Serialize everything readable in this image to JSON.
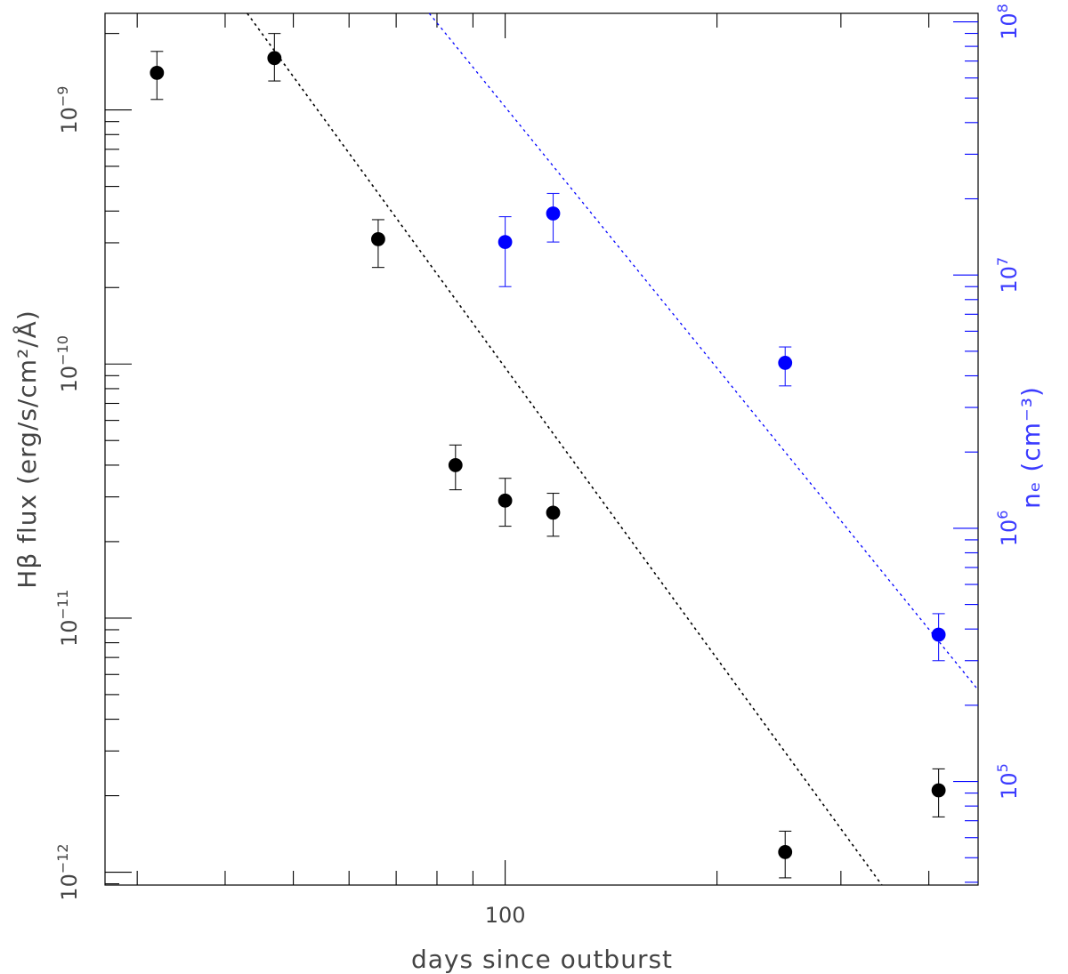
{
  "chart_data": {
    "type": "scatter",
    "xlabel": "days since outburst",
    "ylabel": "Hβ flux (erg/s/cm²/Å)",
    "y2label": "nₑ (cm⁻³)",
    "xscale": "log",
    "yscale": "log",
    "y2scale": "log",
    "xlim": [
      27,
      470
    ],
    "ylim": [
      8.9e-13,
      2.4e-09
    ],
    "y2lim": [
      39000.0,
      108000000.0
    ],
    "x_ticks_labeled": [
      100
    ],
    "x_tick_labels": [
      "100"
    ],
    "y_ticks_labeled": [
      1e-12,
      1e-11,
      1e-10,
      1e-09
    ],
    "y_tick_labels": [
      "10−12",
      "10−11",
      "10−10",
      "10−9"
    ],
    "y2_ticks_labeled": [
      100000.0,
      1000000.0,
      10000000.0,
      100000000.0
    ],
    "y2_tick_labels": [
      "105",
      "106",
      "107",
      "108"
    ],
    "series": [
      {
        "name": "Hβ flux",
        "axis": "left",
        "color": "#000000",
        "x": [
          32,
          47,
          66,
          85,
          100,
          117,
          250,
          413
        ],
        "y": [
          1.4e-09,
          1.6e-09,
          3.1e-10,
          4e-11,
          2.9e-11,
          2.6e-11,
          1.2e-12,
          2.1e-12
        ],
        "y_err_low": [
          1.1e-09,
          1.3e-09,
          2.4e-10,
          3.2e-11,
          2.3e-11,
          2.1e-11,
          9.5e-13,
          1.65e-12
        ],
        "y_err_high": [
          1.7e-09,
          2e-09,
          3.7e-10,
          4.8e-11,
          3.55e-11,
          3.1e-11,
          1.45e-12,
          2.55e-12
        ]
      },
      {
        "name": "nₑ",
        "axis": "right",
        "color": "#0000ff",
        "x": [
          100,
          117,
          250,
          413
        ],
        "y": [
          13500000.0,
          17500000.0,
          4500000.0,
          380000.0
        ],
        "y_err_low": [
          9000000.0,
          13500000.0,
          3650000.0,
          300000.0
        ],
        "y_err_high": [
          17000000.0,
          21000000.0,
          5200000.0,
          460000.0
        ]
      }
    ],
    "fits": [
      {
        "axis": "left",
        "color": "#000000",
        "points": [
          [
            43,
            2.4e-09
          ],
          [
            343,
            8.9e-13
          ]
        ]
      },
      {
        "axis": "right",
        "color": "#0000ff",
        "points": [
          [
            78,
            108000000.0
          ],
          [
            470,
            230000.0
          ]
        ]
      }
    ],
    "grid": false
  }
}
